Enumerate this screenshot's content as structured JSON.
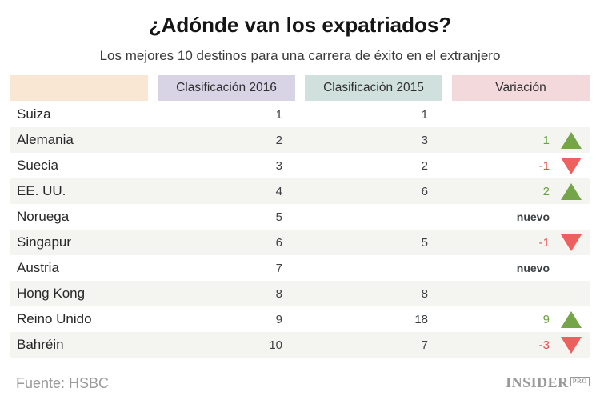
{
  "chart_data": {
    "type": "table",
    "title": "¿Adónde van los expatriados?",
    "subtitle": "Los mejores 10 destinos para una carrera de éxito en el extranjero",
    "columns": [
      "",
      "Clasificación 2016",
      "Clasificación 2015",
      "Variación"
    ],
    "rows": [
      [
        "Suiza",
        1,
        1,
        null
      ],
      [
        "Alemania",
        2,
        3,
        1
      ],
      [
        "Suecia",
        3,
        2,
        -1
      ],
      [
        "EE. UU.",
        4,
        6,
        2
      ],
      [
        "Noruega",
        5,
        null,
        "nuevo"
      ],
      [
        "Singapur",
        6,
        5,
        -1
      ],
      [
        "Austria",
        7,
        null,
        "nuevo"
      ],
      [
        "Hong Kong",
        8,
        8,
        null
      ],
      [
        "Reino Unido",
        9,
        18,
        9
      ],
      [
        "Bahréin",
        10,
        7,
        -3
      ]
    ],
    "source": "Fuente: HSBC"
  },
  "branding": {
    "name": "INSIDER",
    "badge": "PRO"
  },
  "colors": {
    "header_bgs": [
      "#f9e7d3",
      "#d8d4e6",
      "#cfe0dd",
      "#f3d9db"
    ],
    "stripe": "#f4f4f0",
    "up_green": "#74a548",
    "up_green_text": "#68a23e",
    "down_red": "#ee5f5f",
    "down_red_text": "#e8504e",
    "new_text": "#3c4043"
  }
}
